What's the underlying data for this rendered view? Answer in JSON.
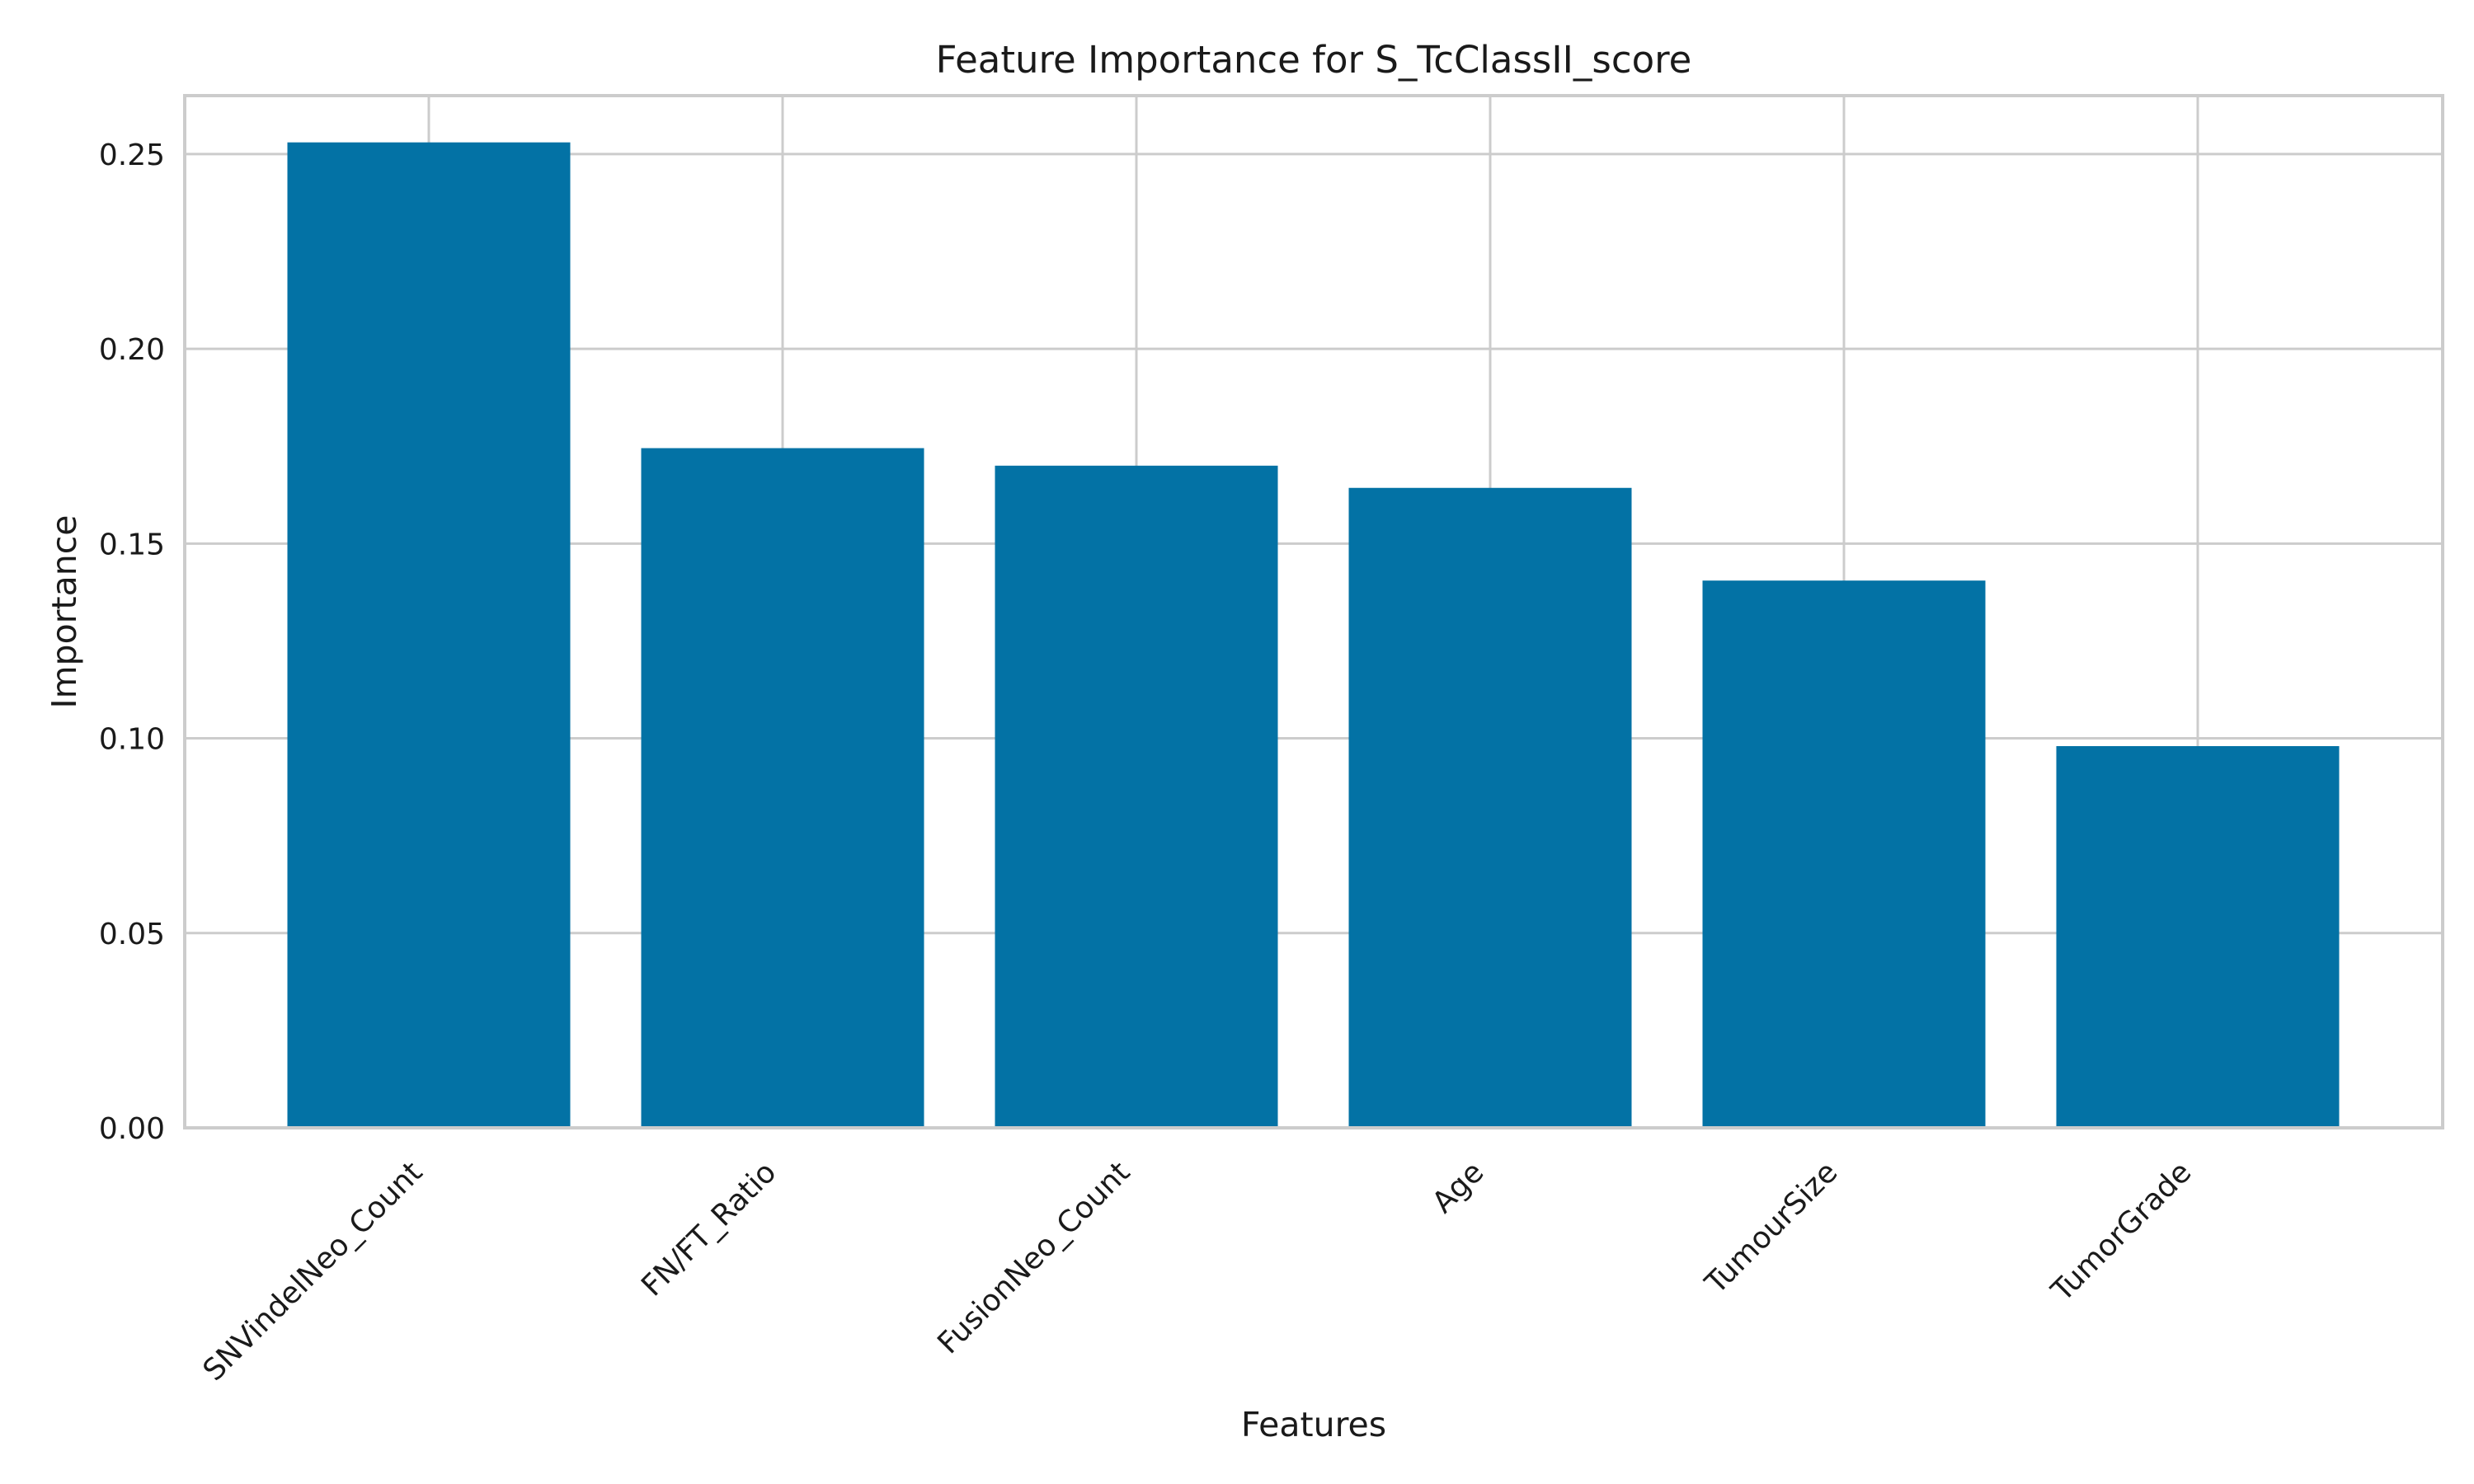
{
  "chart_data": {
    "type": "bar",
    "title": "Feature Importance for S_TcClassII_score",
    "xlabel": "Features",
    "ylabel": "Importance",
    "categories": [
      "SNVindelNeo_Count",
      "FN/FT_Ratio",
      "FusionNeo_Count",
      "Age",
      "TumourSize",
      "TumorGrade"
    ],
    "values": [
      0.253,
      0.1745,
      0.17,
      0.1643,
      0.1405,
      0.098
    ],
    "ylim": [
      0,
      0.265
    ],
    "yticks": [
      0.0,
      0.05,
      0.1,
      0.15,
      0.2,
      0.25
    ],
    "ytick_labels": [
      "0.00",
      "0.05",
      "0.10",
      "0.15",
      "0.20",
      "0.25"
    ],
    "grid": true,
    "bar_color": "#0372a5",
    "grid_color": "#cccccc"
  }
}
